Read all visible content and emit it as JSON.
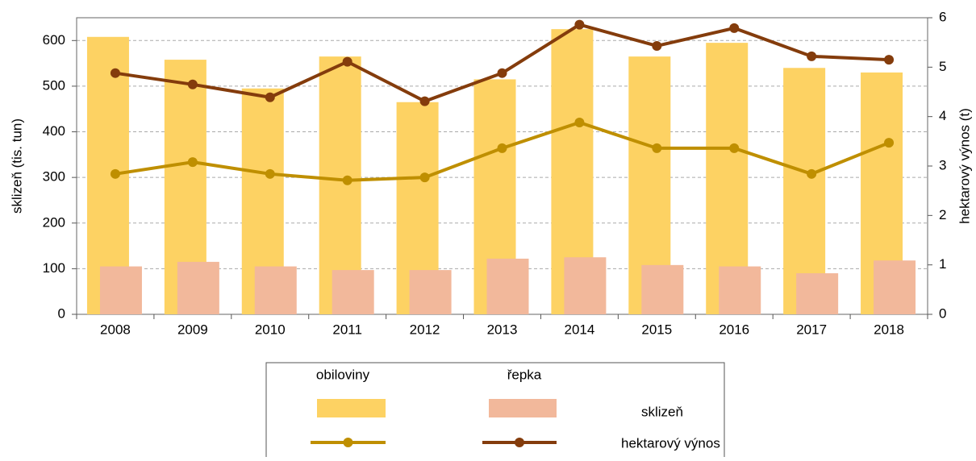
{
  "chart_data": {
    "type": "bar_line",
    "categories": [
      "2008",
      "2009",
      "2010",
      "2011",
      "2012",
      "2013",
      "2014",
      "2015",
      "2016",
      "2017",
      "2018"
    ],
    "ylabel": "sklizeň (tis. tun)",
    "y2label": "hektarový výnos (t)",
    "ylim": [
      0,
      650
    ],
    "yticks": [
      0,
      100,
      200,
      300,
      400,
      500,
      600
    ],
    "y2lim": [
      0,
      6
    ],
    "y2ticks": [
      0,
      1,
      2,
      3,
      4,
      5,
      6
    ],
    "grid": true,
    "legend_rows": [
      "sklizeň",
      "hektarový výnos"
    ],
    "series": [
      {
        "name": "obiloviny",
        "type": "bar",
        "color": "#fdd263",
        "values": [
          608,
          558,
          495,
          565,
          465,
          515,
          625,
          565,
          595,
          540,
          530
        ]
      },
      {
        "name": "řepka",
        "type": "bar",
        "color": "#f2b89b",
        "values": [
          105,
          115,
          105,
          97,
          97,
          122,
          125,
          108,
          105,
          90,
          118
        ]
      },
      {
        "type": "line",
        "axis": "y2",
        "color": "#bf8f00",
        "values": [
          2.84,
          3.08,
          2.84,
          2.71,
          2.77,
          3.36,
          3.88,
          3.36,
          3.36,
          2.84,
          3.47
        ]
      },
      {
        "type": "line",
        "axis": "y2",
        "color": "#843c0c",
        "values": [
          4.88,
          4.65,
          4.39,
          5.11,
          4.31,
          4.88,
          5.86,
          5.43,
          5.79,
          5.22,
          5.15
        ]
      }
    ]
  }
}
